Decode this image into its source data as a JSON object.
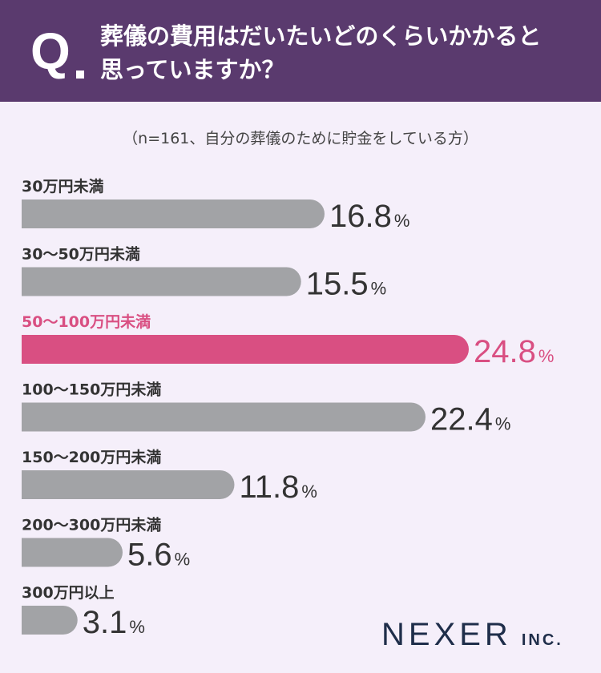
{
  "header": {
    "q_mark": "Q",
    "question_line1": "葬儀の費用はだいたいどのくらいかかると",
    "question_line2": "思っていますか？"
  },
  "subtitle": "（n=161、自分の葬儀のために貯金をしている方）",
  "colors": {
    "header_bg": "#5a3a6e",
    "page_bg": "#f5effa",
    "bar_default": "#a2a3a6",
    "bar_highlight": "#d94f82",
    "text_default": "#333333",
    "logo": "#1f2e4a"
  },
  "chart_data": {
    "type": "bar",
    "orientation": "horizontal",
    "categories": [
      "30万円未満",
      "30〜50万円未満",
      "50〜100万円未満",
      "100〜150万円未満",
      "150〜200万円未満",
      "200〜300万円未満",
      "300万円以上"
    ],
    "values": [
      16.8,
      15.5,
      24.8,
      22.4,
      11.8,
      5.6,
      3.1
    ],
    "value_labels": [
      "16.8",
      "15.5",
      "24.8",
      "22.4",
      "11.8",
      "5.6",
      "3.1"
    ],
    "unit": "%",
    "highlight_index": 2,
    "grid": false,
    "legend": "none"
  },
  "logo": {
    "main": "NEXER",
    "sub": "INC."
  }
}
